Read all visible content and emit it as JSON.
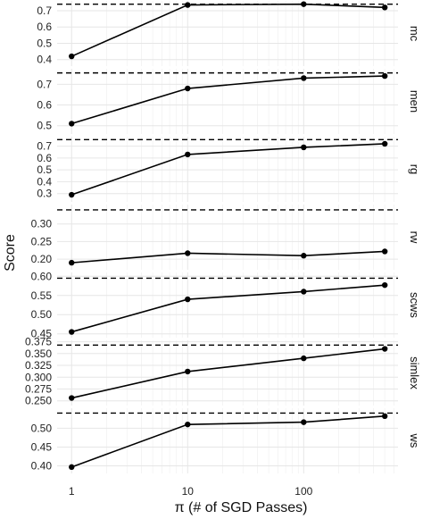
{
  "chart_data": {
    "type": "line",
    "xlabel": "π (# of SGD Passes)",
    "ylabel": "Score",
    "x_scale": "log10",
    "x_ticks": [
      1,
      10,
      100
    ],
    "x_tick_labels": [
      "1",
      "10",
      "100"
    ],
    "xlim": [
      0.75,
      650
    ],
    "x": [
      1,
      10,
      100,
      500
    ],
    "panels": [
      {
        "label": "mc",
        "values": [
          0.42,
          0.735,
          0.74,
          0.72
        ],
        "reference": 0.74,
        "ylim": [
          0.36,
          0.76
        ],
        "yticks": [
          0.4,
          0.5,
          0.6,
          0.7
        ],
        "ytick_labels": [
          "0.4",
          "0.5",
          "0.6",
          "0.7"
        ]
      },
      {
        "label": "men",
        "values": [
          0.51,
          0.68,
          0.73,
          0.74
        ],
        "reference": 0.755,
        "ylim": [
          0.46,
          0.775
        ],
        "yticks": [
          0.5,
          0.6,
          0.7
        ],
        "ytick_labels": [
          "0.5",
          "0.6",
          "0.7"
        ]
      },
      {
        "label": "rg",
        "values": [
          0.29,
          0.63,
          0.69,
          0.72
        ],
        "reference": 0.755,
        "ylim": [
          0.23,
          0.78
        ],
        "yticks": [
          0.3,
          0.4,
          0.5,
          0.6,
          0.7
        ],
        "ytick_labels": [
          "0.3",
          "0.4",
          "0.5",
          "0.6",
          "0.7"
        ]
      },
      {
        "label": "rw",
        "values": [
          0.19,
          0.217,
          0.21,
          0.222
        ],
        "reference": 0.34,
        "ylim": [
          0.17,
          0.355
        ],
        "yticks": [
          0.2,
          0.25,
          0.3
        ],
        "ytick_labels": [
          "0.20",
          "0.25",
          "0.30"
        ]
      },
      {
        "label": "scws",
        "values": [
          0.455,
          0.54,
          0.56,
          0.577
        ],
        "reference": 0.595,
        "ylim": [
          0.44,
          0.61
        ],
        "yticks": [
          0.45,
          0.5,
          0.55,
          0.6
        ],
        "ytick_labels": [
          "0.45",
          "0.50",
          "0.55",
          "0.60"
        ]
      },
      {
        "label": "simlex",
        "values": [
          0.256,
          0.312,
          0.34,
          0.36
        ],
        "reference": 0.368,
        "ylim": [
          0.24,
          0.378
        ],
        "yticks": [
          0.25,
          0.275,
          0.3,
          0.325,
          0.35,
          0.375
        ],
        "ytick_labels": [
          "0.250",
          "0.275",
          "0.300",
          "0.325",
          "0.350",
          "0.375"
        ]
      },
      {
        "label": "ws",
        "values": [
          0.397,
          0.51,
          0.516,
          0.532
        ],
        "reference": 0.54,
        "ylim": [
          0.38,
          0.553
        ],
        "yticks": [
          0.4,
          0.45,
          0.5
        ],
        "ytick_labels": [
          "0.40",
          "0.45",
          "0.50"
        ]
      }
    ]
  }
}
